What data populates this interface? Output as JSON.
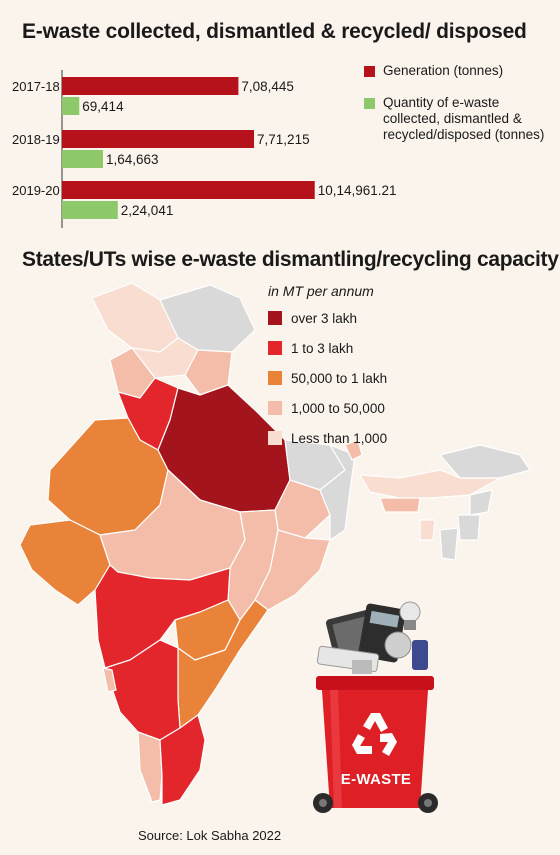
{
  "title": "E-waste collected, dismantled & recycled/ disposed",
  "map_title": "States/UTs wise e-waste dismantling/recycling capacity",
  "colors": {
    "generation": "#b5121b",
    "collected": "#8dc86a",
    "over_3_lakh": "#a3141c",
    "one_to_3_lakh": "#e3262b",
    "fifty_k_to_1_lakh": "#e9833a",
    "one_k_to_50k": "#f4bda9",
    "less_than_1000": "#f8ddd0",
    "no_data": "#d9d9d9"
  },
  "chart_data": {
    "type": "bar",
    "orientation": "horizontal",
    "categories": [
      "2017-18",
      "2018-19",
      "2019-20"
    ],
    "series": [
      {
        "name": "Generation (tonnes)",
        "values": [
          708445,
          771215,
          1014961.21
        ],
        "labels": [
          "7,08,445",
          "7,71,215",
          "10,14,961.21"
        ]
      },
      {
        "name": "Quantity of e-waste collected, dismantled & recycled/disposed (tonnes)",
        "values": [
          69414,
          164663,
          224041
        ],
        "labels": [
          "69,414",
          "1,64,663",
          "2,24,041"
        ]
      }
    ],
    "legend_position": "right"
  },
  "legend": {
    "generation": "Generation (tonnes)",
    "collected": "Quantity of e-waste collected, dismantled & recycled/disposed (tonnes)"
  },
  "map_legend": {
    "title": "in MT per annum",
    "items": [
      {
        "label": "over 3 lakh",
        "color": "#a3141c"
      },
      {
        "label": "1 to 3 lakh",
        "color": "#e3262b"
      },
      {
        "label": "50,000 to 1 lakh",
        "color": "#e9833a"
      },
      {
        "label": "1,000 to 50,000",
        "color": "#f4bda9"
      },
      {
        "label": "Less than 1,000",
        "color": "#f8ddd0"
      }
    ]
  },
  "bin_label": "E-WASTE",
  "source": "Source: Lok Sabha 2022"
}
